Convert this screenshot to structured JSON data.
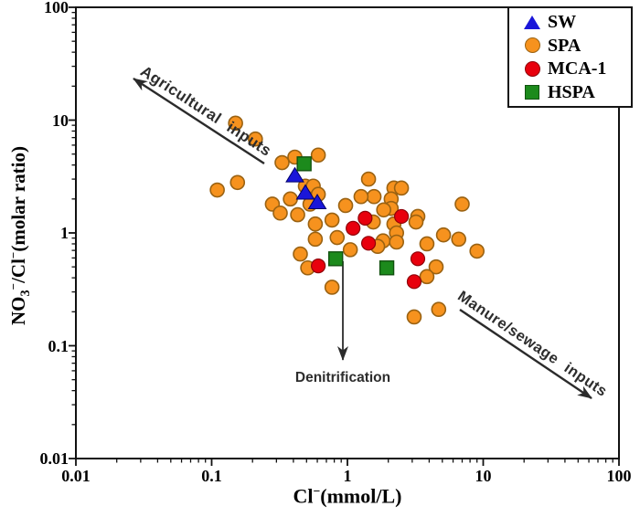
{
  "chart_data": {
    "type": "scatter",
    "xscale": "log",
    "yscale": "log",
    "xlim": [
      0.01,
      100
    ],
    "ylim": [
      0.01,
      100
    ],
    "xlabel": "Cl−(mmol/L)",
    "ylabel": "NO3−/Cl−(molar ratio)",
    "x_ticks": [
      "0.01",
      "0.1",
      "1",
      "10",
      "100"
    ],
    "y_ticks": [
      "100",
      "10",
      "1",
      "0.1",
      "0.01"
    ],
    "grid": false,
    "legend_position": "top-right",
    "series": [
      {
        "name": "SW",
        "marker": "triangle",
        "color": "#1A16D9",
        "points": [
          [
            0.41,
            3.2
          ],
          [
            0.49,
            2.25
          ],
          [
            0.6,
            1.85
          ]
        ]
      },
      {
        "name": "SPA",
        "marker": "circle",
        "color": "#F6921E",
        "points": [
          [
            0.15,
            9.4
          ],
          [
            0.21,
            6.8
          ],
          [
            0.33,
            4.2
          ],
          [
            0.41,
            4.7
          ],
          [
            0.61,
            4.9
          ],
          [
            0.11,
            2.4
          ],
          [
            0.155,
            2.8
          ],
          [
            0.49,
            2.6
          ],
          [
            0.56,
            2.6
          ],
          [
            0.61,
            2.2
          ],
          [
            0.38,
            2.0
          ],
          [
            0.28,
            1.8
          ],
          [
            0.32,
            1.5
          ],
          [
            0.43,
            1.45
          ],
          [
            0.53,
            1.8
          ],
          [
            0.58,
            1.2
          ],
          [
            1.43,
            3.0
          ],
          [
            1.57,
            2.1
          ],
          [
            1.26,
            2.1
          ],
          [
            0.97,
            1.75
          ],
          [
            2.2,
            2.5
          ],
          [
            2.5,
            2.5
          ],
          [
            2.1,
            2.0
          ],
          [
            2.1,
            1.65
          ],
          [
            1.85,
            1.6
          ],
          [
            2.2,
            1.2
          ],
          [
            3.3,
            1.4
          ],
          [
            7.0,
            1.8
          ],
          [
            0.77,
            1.3
          ],
          [
            0.58,
            0.88
          ],
          [
            0.45,
            0.65
          ],
          [
            0.51,
            0.49
          ],
          [
            0.84,
            0.91
          ],
          [
            0.77,
            0.33
          ],
          [
            1.05,
            0.71
          ],
          [
            1.55,
            1.25
          ],
          [
            1.83,
            0.85
          ],
          [
            1.67,
            0.76
          ],
          [
            2.3,
            1.0
          ],
          [
            2.3,
            0.83
          ],
          [
            3.2,
            1.25
          ],
          [
            3.85,
            0.8
          ],
          [
            5.1,
            0.96
          ],
          [
            6.6,
            0.88
          ],
          [
            9.0,
            0.69
          ],
          [
            4.5,
            0.5
          ],
          [
            3.85,
            0.41
          ],
          [
            3.1,
            0.18
          ],
          [
            4.7,
            0.21
          ]
        ]
      },
      {
        "name": "MCA-1",
        "marker": "circle",
        "color": "#E8000D",
        "points": [
          [
            1.35,
            1.35
          ],
          [
            2.5,
            1.4
          ],
          [
            1.1,
            1.1
          ],
          [
            1.43,
            0.81
          ],
          [
            3.3,
            0.59
          ],
          [
            3.1,
            0.37
          ],
          [
            0.61,
            0.51
          ]
        ]
      },
      {
        "name": "HSPA",
        "marker": "square",
        "color": "#1C8A1C",
        "points": [
          [
            0.48,
            4.1
          ],
          [
            0.82,
            0.59
          ],
          [
            1.95,
            0.49
          ]
        ]
      }
    ],
    "annotations": [
      {
        "text": "Agricultural inputs",
        "arrow_direction": "up-left"
      },
      {
        "text": "Manure/sewage inputs",
        "arrow_direction": "down-right"
      },
      {
        "text": "Denitrification",
        "arrow_direction": "down"
      }
    ]
  },
  "axes": {
    "x": {
      "t1": "Cl",
      "sup": "−",
      "t2": "(mmol/L)"
    },
    "y": {
      "t1": "NO",
      "sub": "3",
      "sup1": "−",
      "t2": "/Cl",
      "sup2": "−",
      "t3": "(molar ratio)"
    }
  },
  "annotations": {
    "agricultural": "Agricultural inputs",
    "manure": "Manure/sewage inputs",
    "denitrification": "Denitrification"
  }
}
